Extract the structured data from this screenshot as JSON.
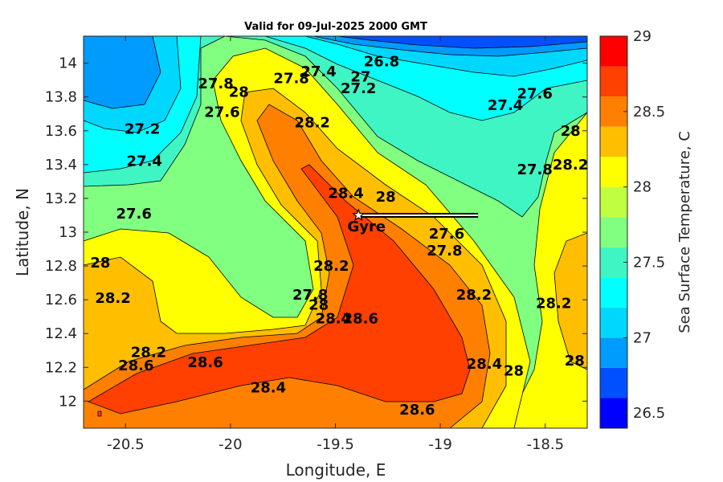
{
  "chart_data": {
    "type": "contour",
    "title": "Valid for 09-Jul-2025 2000 GMT",
    "xlabel": "Longitude, E",
    "ylabel": "Latitude, N",
    "xlim": [
      -20.7,
      -18.3
    ],
    "ylim": [
      11.84,
      14.16
    ],
    "xticks": [
      -20.5,
      -20,
      -19.5,
      -19,
      -18.5
    ],
    "yticks": [
      12,
      12.2,
      12.4,
      12.6,
      12.8,
      13,
      13.2,
      13.4,
      13.6,
      13.8,
      14
    ],
    "colorbar": {
      "label": "Sea Surface Temperature, C",
      "range": [
        26.4,
        29.0
      ],
      "ticks": [
        26.5,
        27,
        27.5,
        28,
        28.5,
        29
      ],
      "levels": [
        26.4,
        26.6,
        26.8,
        27.0,
        27.2,
        27.4,
        27.6,
        27.8,
        28.0,
        28.2,
        28.4,
        28.6,
        28.8,
        29.0
      ],
      "colors": [
        "#0000ff",
        "#0050ff",
        "#009bff",
        "#00d7ff",
        "#00ffff",
        "#3ff5c3",
        "#80ff80",
        "#bfff40",
        "#ffff00",
        "#ffbf00",
        "#ff8000",
        "#ff4000",
        "#ff0000"
      ]
    },
    "contour_labels": [
      {
        "text": "26.8",
        "x": -19.28,
        "y": 14.01
      },
      {
        "text": "27",
        "x": -19.38,
        "y": 13.92
      },
      {
        "text": "27.2",
        "x": -19.39,
        "y": 13.85
      },
      {
        "text": "27.4",
        "x": -19.58,
        "y": 13.95
      },
      {
        "text": "27.8",
        "x": -19.71,
        "y": 13.91
      },
      {
        "text": "27.8",
        "x": -20.07,
        "y": 13.88
      },
      {
        "text": "28",
        "x": -19.96,
        "y": 13.83
      },
      {
        "text": "27.6",
        "x": -20.04,
        "y": 13.71
      },
      {
        "text": "28.2",
        "x": -19.61,
        "y": 13.65
      },
      {
        "text": "27.2",
        "x": -20.42,
        "y": 13.61
      },
      {
        "text": "27.4",
        "x": -20.41,
        "y": 13.42
      },
      {
        "text": "27.6",
        "x": -20.46,
        "y": 13.11
      },
      {
        "text": "28.4",
        "x": -19.45,
        "y": 13.23
      },
      {
        "text": "28",
        "x": -19.26,
        "y": 13.21
      },
      {
        "text": "27.6",
        "x": -18.97,
        "y": 12.99
      },
      {
        "text": "27.8",
        "x": -18.98,
        "y": 12.89
      },
      {
        "text": "28.2",
        "x": -19.52,
        "y": 12.8
      },
      {
        "text": "27.8",
        "x": -19.62,
        "y": 12.63
      },
      {
        "text": "28",
        "x": -19.58,
        "y": 12.57
      },
      {
        "text": "28.4",
        "x": -19.51,
        "y": 12.49
      },
      {
        "text": "28.6",
        "x": -19.38,
        "y": 12.49
      },
      {
        "text": "28.2",
        "x": -18.84,
        "y": 12.63
      },
      {
        "text": "28.4",
        "x": -18.79,
        "y": 12.22
      },
      {
        "text": "28",
        "x": -18.65,
        "y": 12.18
      },
      {
        "text": "28",
        "x": -20.62,
        "y": 12.82
      },
      {
        "text": "28.2",
        "x": -20.56,
        "y": 12.61
      },
      {
        "text": "28.2",
        "x": -20.39,
        "y": 12.29
      },
      {
        "text": "28.6",
        "x": -20.45,
        "y": 12.21
      },
      {
        "text": "28.6",
        "x": -20.12,
        "y": 12.23
      },
      {
        "text": "28.4",
        "x": -19.82,
        "y": 12.08
      },
      {
        "text": "28.6",
        "x": -19.11,
        "y": 11.95
      },
      {
        "text": "27.4",
        "x": -18.69,
        "y": 13.75
      },
      {
        "text": "27.6",
        "x": -18.55,
        "y": 13.82
      },
      {
        "text": "28",
        "x": -18.38,
        "y": 13.6
      },
      {
        "text": "28.2",
        "x": -18.38,
        "y": 13.4
      },
      {
        "text": "27.8",
        "x": -18.55,
        "y": 13.37
      },
      {
        "text": "28.2",
        "x": -18.46,
        "y": 12.58
      },
      {
        "text": "28",
        "x": -18.36,
        "y": 12.24
      }
    ],
    "annotation": {
      "text": "Gyre",
      "marker_x": -19.39,
      "marker_y": 13.1,
      "arrow_to_x": -18.82,
      "arrow_to_y": 13.1
    }
  }
}
